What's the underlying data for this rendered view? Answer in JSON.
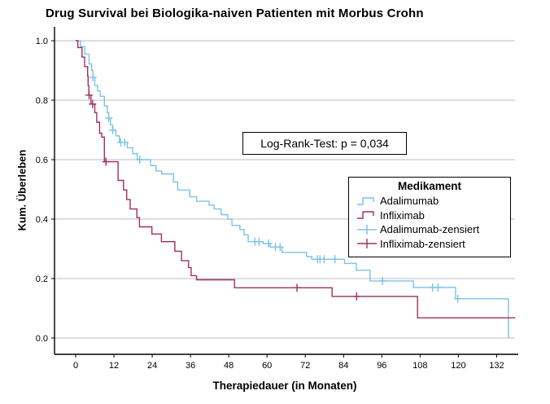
{
  "title": "Drug Survival bei Biologika-naiven Patienten mit Morbus Crohn",
  "annotation": {
    "text": "Log-Rank-Test: p = 0,034"
  },
  "legend": {
    "title": "Medikament",
    "items": [
      {
        "label": "Adalimumab",
        "symbol": "step",
        "color": "#7CC2E8"
      },
      {
        "label": "Infliximab",
        "symbol": "step",
        "color": "#A02F5F"
      },
      {
        "label": "Adalimumab-zensiert",
        "symbol": "censor",
        "color": "#7CC2E8"
      },
      {
        "label": "Infliximab-zensiert",
        "symbol": "censor",
        "color": "#A02F5F"
      }
    ]
  },
  "colors": {
    "adalimumab": "#7CC2E8",
    "infliximab": "#A02F5F",
    "grid": "#BDBDBD",
    "axis": "#000000",
    "background": "#FFFFFF"
  },
  "chart_data": {
    "type": "line",
    "subtype": "kaplan-meier-step-function",
    "title": "Drug Survival bei Biologika-naiven Patienten mit Morbus Crohn",
    "xlabel": "Therapiedauer (in Monaten)",
    "ylabel": "Kum. Überleben",
    "annotation": "Log-Rank-Test: p = 0,034",
    "grid": "horizontal",
    "legend_position": "right-middle-inside",
    "xlim": [
      -6.6,
      137.8
    ],
    "ylim": [
      0.0,
      1.0
    ],
    "x_tick_values": [
      0,
      12,
      24,
      36,
      48,
      60,
      72,
      84,
      96,
      108,
      120,
      132
    ],
    "x_tick_labels": [
      "0",
      "12",
      "24",
      "36",
      "48",
      "60",
      "72",
      "84",
      "96",
      "108",
      "120",
      "132"
    ],
    "y_tick_values": [
      0.0,
      0.2,
      0.4,
      0.6,
      0.8,
      1.0
    ],
    "y_tick_labels": [
      "0.0",
      "0.2",
      "0.4",
      "0.6",
      "0.8",
      "1.0"
    ],
    "series": [
      {
        "name": "Adalimumab",
        "color": "#7CC2E8",
        "end_month": 135.7,
        "steps": [
          [
            0,
            1.0
          ],
          [
            1.5,
            0.98
          ],
          [
            2.8,
            0.955
          ],
          [
            4.2,
            0.922
          ],
          [
            5.0,
            0.9
          ],
          [
            5.4,
            0.877
          ],
          [
            6.0,
            0.849
          ],
          [
            6.9,
            0.831
          ],
          [
            7.7,
            0.813
          ],
          [
            9.0,
            0.781
          ],
          [
            9.9,
            0.758
          ],
          [
            10.4,
            0.74
          ],
          [
            10.9,
            0.717
          ],
          [
            11.6,
            0.699
          ],
          [
            12.6,
            0.68
          ],
          [
            13.7,
            0.658
          ],
          [
            16.2,
            0.64
          ],
          [
            17.9,
            0.62
          ],
          [
            19.3,
            0.6
          ],
          [
            23.5,
            0.58
          ],
          [
            25.2,
            0.562
          ],
          [
            27.0,
            0.552
          ],
          [
            30.7,
            0.525
          ],
          [
            32.0,
            0.498
          ],
          [
            35.8,
            0.475
          ],
          [
            37.9,
            0.46
          ],
          [
            41.8,
            0.447
          ],
          [
            43.4,
            0.434
          ],
          [
            45.6,
            0.415
          ],
          [
            47.7,
            0.4
          ],
          [
            49.0,
            0.379
          ],
          [
            51.5,
            0.365
          ],
          [
            52.8,
            0.347
          ],
          [
            54.1,
            0.324
          ],
          [
            58.8,
            0.318
          ],
          [
            61.0,
            0.306
          ],
          [
            64.7,
            0.288
          ],
          [
            72.4,
            0.274
          ],
          [
            74.0,
            0.265
          ],
          [
            84.3,
            0.251
          ],
          [
            88.0,
            0.228
          ],
          [
            92.3,
            0.192
          ],
          [
            105.9,
            0.17
          ],
          [
            119.1,
            0.132
          ],
          [
            135.7,
            0.0
          ]
        ],
        "censored": [
          [
            5.4,
            0.877
          ],
          [
            10.4,
            0.74
          ],
          [
            11.6,
            0.699
          ],
          [
            14.1,
            0.658
          ],
          [
            15.4,
            0.658
          ],
          [
            20.1,
            0.6
          ],
          [
            56.2,
            0.324
          ],
          [
            57.5,
            0.324
          ],
          [
            60.5,
            0.318
          ],
          [
            62.6,
            0.306
          ],
          [
            64.1,
            0.306
          ],
          [
            75.8,
            0.265
          ],
          [
            76.6,
            0.265
          ],
          [
            77.9,
            0.265
          ],
          [
            81.3,
            0.265
          ],
          [
            96.2,
            0.192
          ],
          [
            111.9,
            0.17
          ],
          [
            113.6,
            0.17
          ],
          [
            119.8,
            0.132
          ]
        ]
      },
      {
        "name": "Infliximab",
        "color": "#A02F5F",
        "end_month": 137.8,
        "steps": [
          [
            0,
            1.0
          ],
          [
            0.7,
            0.977
          ],
          [
            2.0,
            0.945
          ],
          [
            2.8,
            0.913
          ],
          [
            3.75,
            0.881
          ],
          [
            3.9,
            0.849
          ],
          [
            4.1,
            0.817
          ],
          [
            4.8,
            0.787
          ],
          [
            6.0,
            0.758
          ],
          [
            6.6,
            0.726
          ],
          [
            7.5,
            0.689
          ],
          [
            8.2,
            0.676
          ],
          [
            9.0,
            0.593
          ],
          [
            13.3,
            0.53
          ],
          [
            15.0,
            0.498
          ],
          [
            16.0,
            0.466
          ],
          [
            17.1,
            0.434
          ],
          [
            19.2,
            0.405
          ],
          [
            20.0,
            0.374
          ],
          [
            23.9,
            0.35
          ],
          [
            26.9,
            0.324
          ],
          [
            31.1,
            0.292
          ],
          [
            33.2,
            0.26
          ],
          [
            35.4,
            0.237
          ],
          [
            36.2,
            0.21
          ],
          [
            37.9,
            0.196
          ],
          [
            49.8,
            0.169
          ],
          [
            80.4,
            0.14
          ],
          [
            107.2,
            0.068
          ]
        ],
        "censored": [
          [
            4.2,
            0.817
          ],
          [
            5.3,
            0.787
          ],
          [
            9.5,
            0.593
          ],
          [
            69.4,
            0.169
          ],
          [
            88.1,
            0.14
          ]
        ]
      }
    ]
  }
}
